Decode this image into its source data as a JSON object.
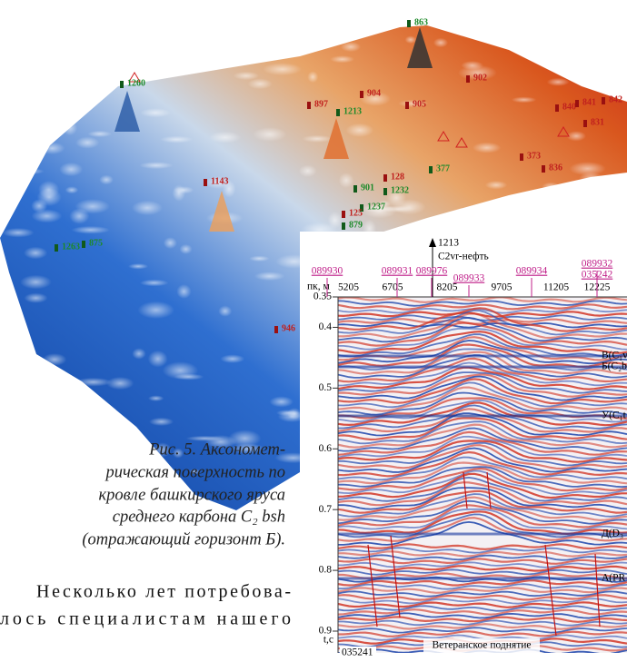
{
  "surface_labels": [
    "1260",
    "863",
    "897",
    "1213",
    "904",
    "905",
    "902",
    "840",
    "841",
    "842",
    "831",
    "373",
    "836",
    "377",
    "128",
    "901",
    "1232",
    "1237",
    "125",
    "879",
    "1143",
    "1263",
    "875",
    "946"
  ],
  "caption": {
    "lines": [
      "Рис. 5. Аксономет-",
      "рическая поверхность по",
      "кровле башкирского яруса",
      "среднего карбона C₂ bsh",
      "(отражающий горизонт Б)."
    ]
  },
  "body": {
    "lines": [
      "Несколько лет потребова-",
      "лось специалистам нашего"
    ]
  },
  "section": {
    "well": "1213",
    "well_note": "С2vr-нефть",
    "profiles": [
      "089930",
      "089931",
      "089976",
      "089933",
      "089934",
      "089932",
      "035242"
    ],
    "distance_label": "пк, м",
    "distances": [
      5205,
      6705,
      8205,
      9705,
      11205,
      12225
    ],
    "time_ticks": [
      0.35,
      0.4,
      0.5,
      0.6,
      0.7,
      0.8,
      0.9
    ],
    "time_label": "t,с",
    "bottom_id": "035241",
    "horizons": [
      "В(С₁v",
      "Б(С₂b",
      "У(С₁t",
      "Д(D₃",
      "А(PR"
    ],
    "structure": "Ветеранское поднятие"
  }
}
